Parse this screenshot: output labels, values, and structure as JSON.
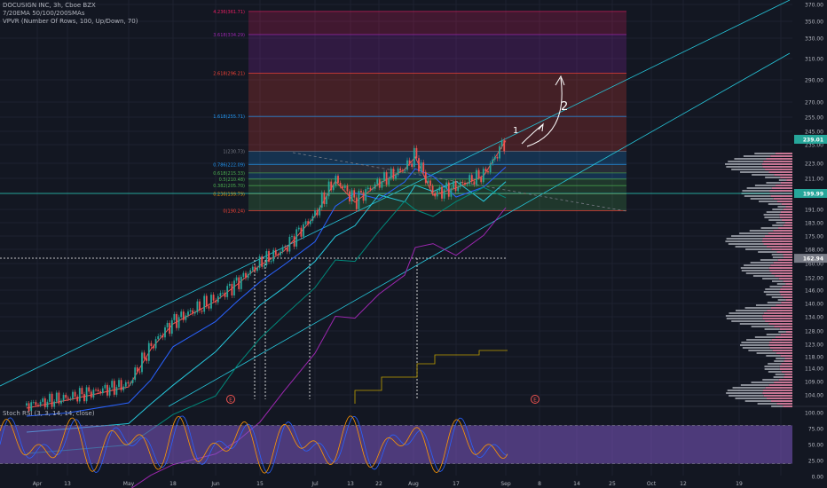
{
  "legends": {
    "symbol": "DOCUSIGN INC, 3h, Cboe BZX",
    "ema": "7/20EMA 50/100/200SMAs",
    "vpvr": "VPVR (Number Of Rows, 100, Up/Down, 70)",
    "stoch": "Stoch RSI (3, 3, 14, 14, close)"
  },
  "colors": {
    "background": "#131722",
    "up": "#26a69a",
    "down": "#ef5350",
    "ema7": "#ef5350",
    "ema20": "#2962ff",
    "sma50": "#26c6da",
    "sma100": "#00897b",
    "sma200": "#9c27b0",
    "rsi_k": "#2962ff",
    "rsi_d": "#ff9800",
    "rsi_band": "#7e57c2",
    "price_badge": "#26a69a"
  },
  "price_axis": {
    "labels": [
      "370.00",
      "350.00",
      "330.00",
      "310.00",
      "290.00",
      "270.00",
      "255.00",
      "245.00",
      "235.00",
      "223.00",
      "211.00",
      "199.99",
      "191.00",
      "183.00",
      "175.00",
      "168.00",
      "160.00",
      "152.00",
      "146.00",
      "140.00",
      "134.00",
      "128.00",
      "123.00",
      "118.00",
      "114.00",
      "109.00",
      "104.00"
    ],
    "current_price": "239.01",
    "level_199": "199.99",
    "level_162": "162.94"
  },
  "rsi_axis": {
    "labels": [
      "100.00",
      "75.00",
      "50.00",
      "25.00",
      "0.00"
    ]
  },
  "time_axis": {
    "labels": [
      "Apr",
      "13",
      "May",
      "18",
      "Jun",
      "15",
      "Jul",
      "13",
      "22",
      "Aug",
      "17",
      "Sep",
      "8",
      "14",
      "25",
      "Oct",
      "12",
      "19"
    ]
  },
  "fib_levels": [
    {
      "label": "4.236(361.71)",
      "color": "#e91e63"
    },
    {
      "label": "3.618(334.29)",
      "color": "#9c27b0"
    },
    {
      "label": "2.618(296.21)",
      "color": "#f44336"
    },
    {
      "label": "1.618(255.71)",
      "color": "#2196f3"
    },
    {
      "label": "1(230.73)",
      "color": "#787b86"
    },
    {
      "label": "0.786(222.09)",
      "color": "#2196f3"
    },
    {
      "label": "0.618(215.33)",
      "color": "#4caf50"
    },
    {
      "label": "0.5(210.48)",
      "color": "#4caf50"
    },
    {
      "label": "0.382(205.70)",
      "color": "#4caf50"
    },
    {
      "label": "0.236(199.79)",
      "color": "#ff9800"
    },
    {
      "label": "0(190.24)",
      "color": "#f44336"
    }
  ],
  "annotations": {
    "wave1": "1",
    "wave2": "2",
    "earnings": "E"
  },
  "chart_data": {
    "type": "candlestick",
    "symbol": "DOCUSIGN INC",
    "interval": "3h",
    "price_range": [
      100,
      375
    ],
    "stoch_rsi_range": [
      0,
      100
    ],
    "current_price": 239.01,
    "marked_levels": [
      199.99,
      162.94
    ],
    "fib_extension": [
      {
        "ratio": 4.236,
        "price": 361.71
      },
      {
        "ratio": 3.618,
        "price": 334.29
      },
      {
        "ratio": 2.618,
        "price": 296.21
      },
      {
        "ratio": 1.618,
        "price": 255.71
      },
      {
        "ratio": 1,
        "price": 230.73
      },
      {
        "ratio": 0.786,
        "price": 222.09
      },
      {
        "ratio": 0.618,
        "price": 215.33
      },
      {
        "ratio": 0.5,
        "price": 210.48
      },
      {
        "ratio": 0.382,
        "price": 205.7
      },
      {
        "ratio": 0.236,
        "price": 199.79
      },
      {
        "ratio": 0,
        "price": 190.24
      }
    ],
    "price_path": [
      {
        "x": "Apr 1",
        "y": 100
      },
      {
        "x": "Apr 13",
        "y": 103
      },
      {
        "x": "May 1",
        "y": 108
      },
      {
        "x": "May 10",
        "y": 122
      },
      {
        "x": "May 18",
        "y": 132
      },
      {
        "x": "Jun 1",
        "y": 142
      },
      {
        "x": "Jun 8",
        "y": 150
      },
      {
        "x": "Jun 15",
        "y": 160
      },
      {
        "x": "Jun 25",
        "y": 168
      },
      {
        "x": "Jul 5",
        "y": 188
      },
      {
        "x": "Jul 10",
        "y": 210
      },
      {
        "x": "Jul 15",
        "y": 196
      },
      {
        "x": "Jul 22",
        "y": 208
      },
      {
        "x": "Aug 1",
        "y": 219
      },
      {
        "x": "Aug 5",
        "y": 228
      },
      {
        "x": "Aug 10",
        "y": 200
      },
      {
        "x": "Aug 17",
        "y": 205
      },
      {
        "x": "Aug 25",
        "y": 214
      },
      {
        "x": "Sep 1",
        "y": 239
      }
    ]
  }
}
